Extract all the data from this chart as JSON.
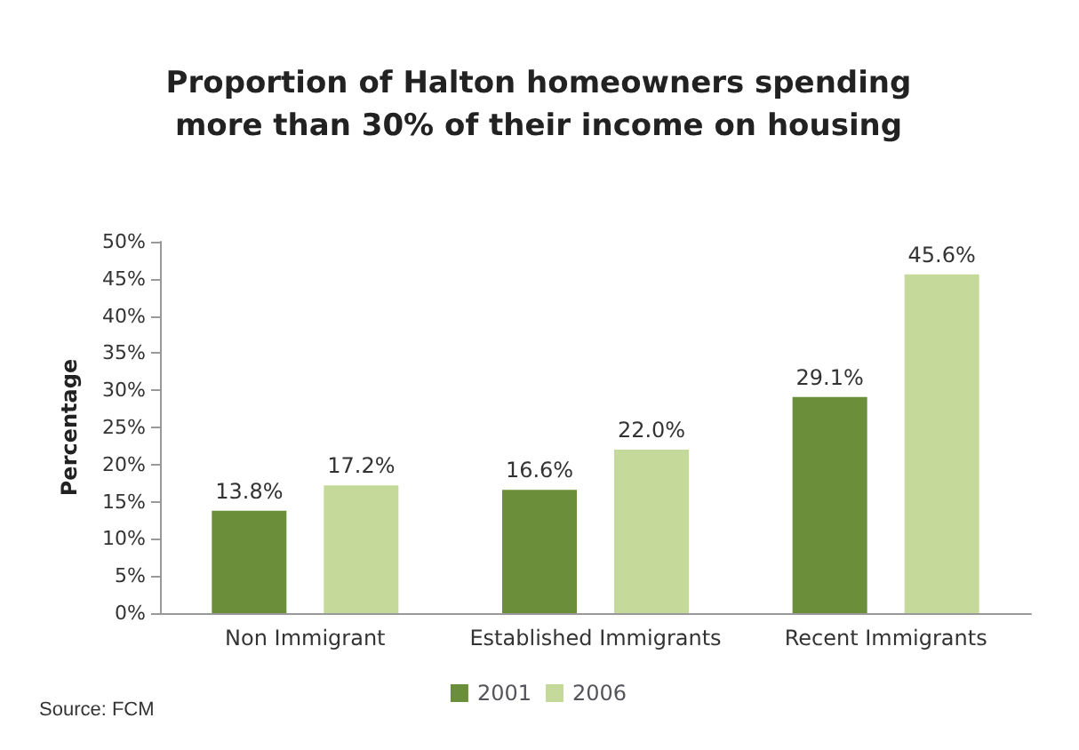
{
  "chart_data": {
    "type": "bar",
    "title": "Proportion of Halton homeowners spending\nmore than 30% of their income on housing",
    "ylabel": "Percentage",
    "categories": [
      "Non Immigrant",
      "Established Immigrants",
      "Recent Immigrants"
    ],
    "series": [
      {
        "name": "2001",
        "color": "#6b8e3a",
        "values": [
          13.8,
          16.6,
          29.1
        ],
        "value_labels": [
          "13.8%",
          "16.6%",
          "29.1%"
        ]
      },
      {
        "name": "2006",
        "color": "#c5d99a",
        "values": [
          17.2,
          22.0,
          45.6
        ],
        "value_labels": [
          "17.2%",
          "22.0%",
          "45.6%"
        ]
      }
    ],
    "ylim": [
      0,
      50
    ],
    "yticks": [
      {
        "value": 0,
        "label": "0%"
      },
      {
        "value": 5,
        "label": "5%"
      },
      {
        "value": 10,
        "label": "10%"
      },
      {
        "value": 15,
        "label": "15%"
      },
      {
        "value": 20,
        "label": "20%"
      },
      {
        "value": 25,
        "label": "25%"
      },
      {
        "value": 30,
        "label": "30%"
      },
      {
        "value": 35,
        "label": "35%"
      },
      {
        "value": 40,
        "label": "40%"
      },
      {
        "value": 45,
        "label": "45%"
      },
      {
        "value": 50,
        "label": "50%"
      }
    ],
    "grid": false,
    "legend": "bottom",
    "annotations": [
      "Source: FCM"
    ]
  }
}
